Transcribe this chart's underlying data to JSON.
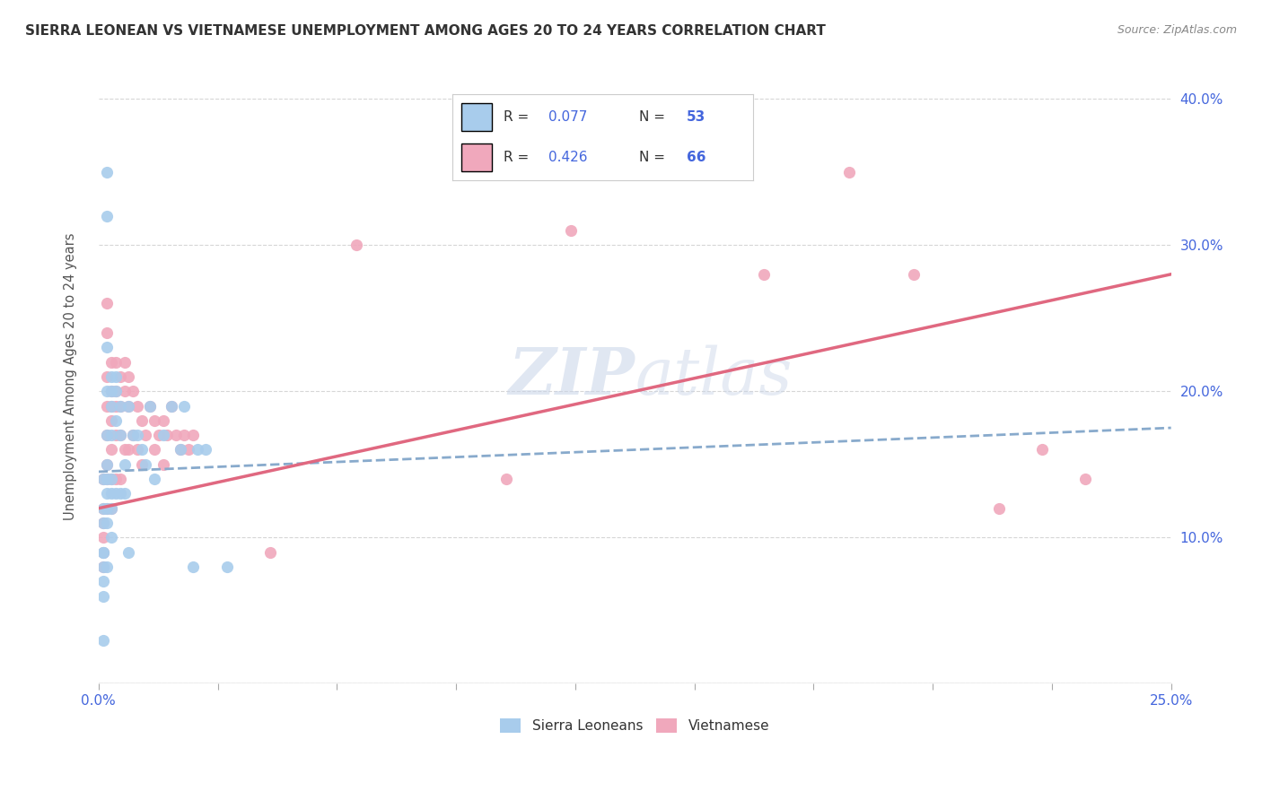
{
  "title": "SIERRA LEONEAN VS VIETNAMESE UNEMPLOYMENT AMONG AGES 20 TO 24 YEARS CORRELATION CHART",
  "source": "Source: ZipAtlas.com",
  "ylabel": "Unemployment Among Ages 20 to 24 years",
  "xlim": [
    0.0,
    0.25
  ],
  "ylim": [
    0.0,
    0.42
  ],
  "sl_color": "#A8CCEC",
  "viet_color": "#F0A8BC",
  "sl_line_color": "#88AACC",
  "viet_line_color": "#E06880",
  "label1": "Sierra Leoneans",
  "label2": "Vietnamese",
  "watermark_zip": "ZIP",
  "watermark_atlas": "atlas",
  "blue_text_color": "#4466DD",
  "title_color": "#333333",
  "legend_r1": "R = 0.077",
  "legend_n1": "N = 53",
  "legend_r2": "R = 0.426",
  "legend_n2": "N = 66",
  "sl_x": [
    0.001,
    0.001,
    0.001,
    0.001,
    0.001,
    0.001,
    0.001,
    0.001,
    0.001,
    0.002,
    0.002,
    0.002,
    0.002,
    0.002,
    0.002,
    0.002,
    0.002,
    0.002,
    0.002,
    0.002,
    0.003,
    0.003,
    0.003,
    0.003,
    0.003,
    0.003,
    0.003,
    0.003,
    0.004,
    0.004,
    0.004,
    0.004,
    0.005,
    0.005,
    0.005,
    0.006,
    0.006,
    0.007,
    0.007,
    0.008,
    0.009,
    0.01,
    0.011,
    0.012,
    0.013,
    0.015,
    0.017,
    0.019,
    0.02,
    0.022,
    0.023,
    0.025,
    0.03
  ],
  "sl_y": [
    0.14,
    0.12,
    0.11,
    0.09,
    0.09,
    0.08,
    0.07,
    0.06,
    0.03,
    0.35,
    0.32,
    0.23,
    0.2,
    0.17,
    0.15,
    0.14,
    0.13,
    0.12,
    0.11,
    0.08,
    0.21,
    0.2,
    0.19,
    0.17,
    0.14,
    0.13,
    0.12,
    0.1,
    0.21,
    0.2,
    0.18,
    0.13,
    0.19,
    0.17,
    0.13,
    0.15,
    0.13,
    0.19,
    0.09,
    0.17,
    0.17,
    0.16,
    0.15,
    0.19,
    0.14,
    0.17,
    0.19,
    0.16,
    0.19,
    0.08,
    0.16,
    0.16,
    0.08
  ],
  "viet_x": [
    0.001,
    0.001,
    0.001,
    0.001,
    0.001,
    0.001,
    0.002,
    0.002,
    0.002,
    0.002,
    0.002,
    0.002,
    0.002,
    0.002,
    0.003,
    0.003,
    0.003,
    0.003,
    0.003,
    0.003,
    0.003,
    0.004,
    0.004,
    0.004,
    0.004,
    0.004,
    0.005,
    0.005,
    0.005,
    0.005,
    0.006,
    0.006,
    0.006,
    0.007,
    0.007,
    0.007,
    0.008,
    0.008,
    0.009,
    0.009,
    0.01,
    0.01,
    0.011,
    0.012,
    0.013,
    0.013,
    0.014,
    0.015,
    0.015,
    0.016,
    0.017,
    0.018,
    0.019,
    0.02,
    0.021,
    0.022,
    0.04,
    0.06,
    0.095,
    0.11,
    0.155,
    0.175,
    0.19,
    0.21,
    0.22,
    0.23
  ],
  "viet_y": [
    0.14,
    0.12,
    0.11,
    0.1,
    0.09,
    0.08,
    0.26,
    0.24,
    0.21,
    0.19,
    0.17,
    0.15,
    0.14,
    0.12,
    0.22,
    0.2,
    0.19,
    0.18,
    0.16,
    0.14,
    0.12,
    0.22,
    0.2,
    0.19,
    0.17,
    0.14,
    0.21,
    0.19,
    0.17,
    0.14,
    0.22,
    0.2,
    0.16,
    0.21,
    0.19,
    0.16,
    0.2,
    0.17,
    0.19,
    0.16,
    0.18,
    0.15,
    0.17,
    0.19,
    0.18,
    0.16,
    0.17,
    0.18,
    0.15,
    0.17,
    0.19,
    0.17,
    0.16,
    0.17,
    0.16,
    0.17,
    0.09,
    0.3,
    0.14,
    0.31,
    0.28,
    0.35,
    0.28,
    0.12,
    0.16,
    0.14
  ],
  "sl_line_x0": 0.0,
  "sl_line_x1": 0.25,
  "sl_line_y0": 0.145,
  "sl_line_y1": 0.175,
  "viet_line_x0": 0.0,
  "viet_line_x1": 0.25,
  "viet_line_y0": 0.12,
  "viet_line_y1": 0.28
}
